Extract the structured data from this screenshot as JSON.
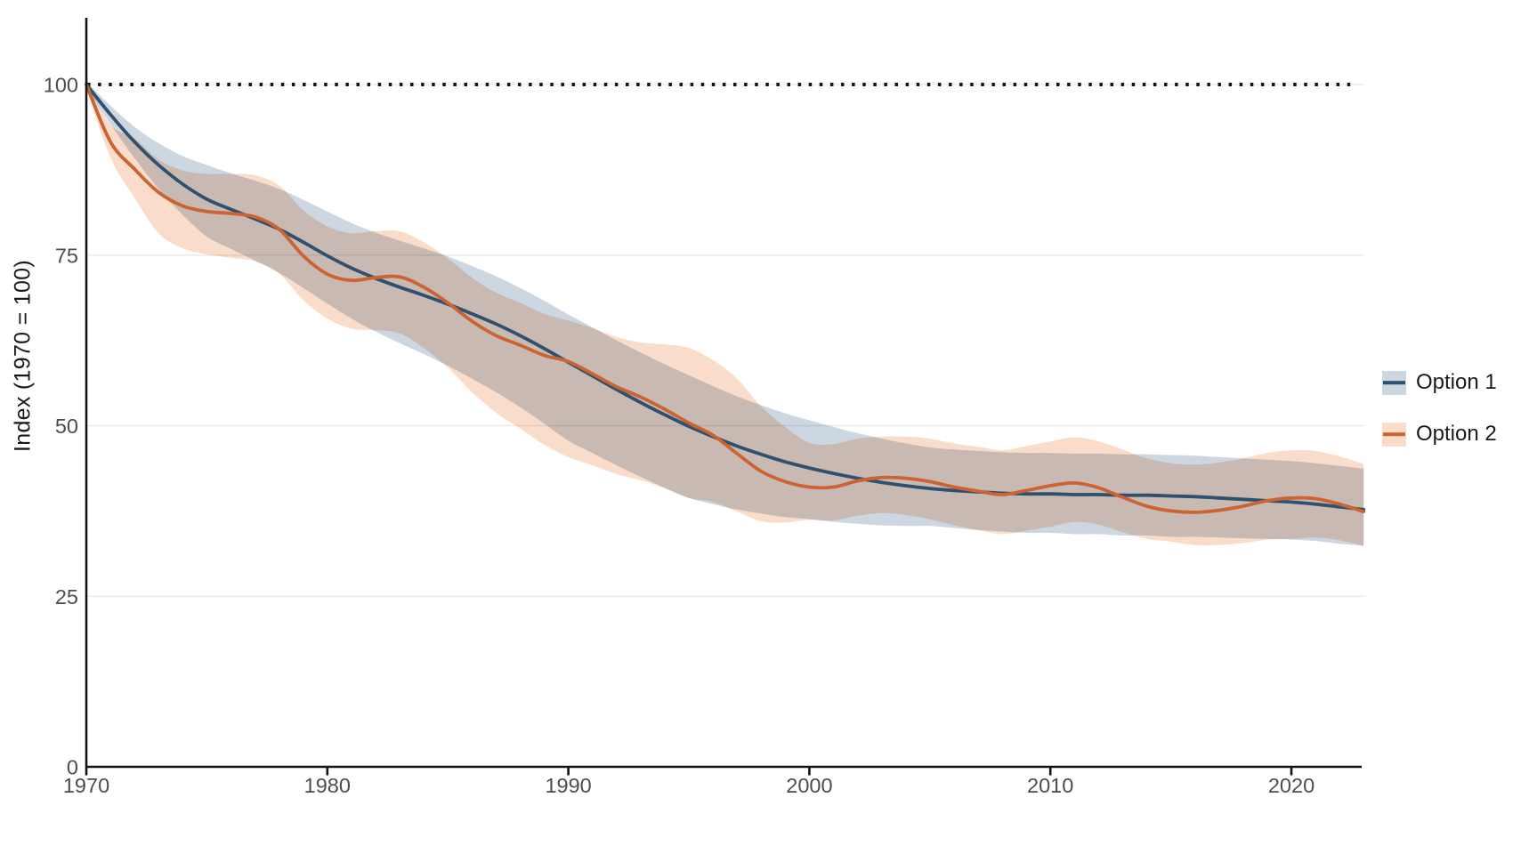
{
  "figure": {
    "background_color": "#ffffff",
    "axis_color": "#141414",
    "grid_color": "#ebebeb",
    "tick_label_color": "#4d4d4d",
    "text_color": "#1a1a1a"
  },
  "chart_data": {
    "type": "line",
    "title": "",
    "xlabel": "",
    "ylabel": "Index (1970 = 100)",
    "xlim": [
      1970,
      2023.3
    ],
    "ylim": [
      0,
      108
    ],
    "x_ticks": [
      1970,
      1980,
      1990,
      2000,
      2010,
      2020
    ],
    "y_ticks": [
      0,
      25,
      50,
      75,
      100
    ],
    "grid": "horizontal-only",
    "legend_position": "right-center",
    "reference_line": {
      "y": 100,
      "style": "dotted",
      "color": "#141414"
    },
    "x": [
      1970,
      1971,
      1972,
      1973,
      1974,
      1975,
      1976,
      1977,
      1978,
      1979,
      1980,
      1981,
      1982,
      1983,
      1984,
      1985,
      1986,
      1987,
      1988,
      1989,
      1990,
      1991,
      1992,
      1993,
      1994,
      1995,
      1996,
      1997,
      1998,
      1999,
      2000,
      2001,
      2002,
      2003,
      2004,
      2005,
      2006,
      2007,
      2008,
      2009,
      2010,
      2011,
      2012,
      2013,
      2014,
      2015,
      2016,
      2017,
      2018,
      2019,
      2020,
      2021,
      2022,
      2023
    ],
    "series": [
      {
        "name": "Option 1",
        "color": "#2f506e",
        "band_color": "#ccd7e2",
        "values": [
          100,
          95.6,
          91.6,
          88.2,
          85.4,
          83.2,
          81.7,
          80.3,
          78.8,
          76.9,
          74.9,
          73.1,
          71.6,
          70.3,
          69.1,
          67.8,
          66.4,
          64.9,
          63.2,
          61.3,
          59.3,
          57.3,
          55.3,
          53.4,
          51.6,
          49.9,
          48.4,
          47,
          45.8,
          44.7,
          43.8,
          43,
          42.3,
          41.7,
          41.2,
          40.8,
          40.5,
          40.3,
          40.1,
          40,
          40,
          39.9,
          39.9,
          39.8,
          39.8,
          39.7,
          39.6,
          39.4,
          39.2,
          39,
          38.8,
          38.5,
          38.1,
          37.7
        ],
        "upper": [
          100.4,
          96.9,
          93.8,
          91.4,
          89.5,
          88.2,
          87,
          85.9,
          84.7,
          83.1,
          81.4,
          79.7,
          78.3,
          77.1,
          76,
          74.8,
          73.4,
          71.9,
          70.2,
          68.3,
          66.3,
          64.4,
          62.5,
          60.7,
          59,
          57.4,
          55.8,
          54.3,
          53,
          51.8,
          50.8,
          49.8,
          48.9,
          48.1,
          47.4,
          46.8,
          46.5,
          46.3,
          46.1,
          46,
          46,
          45.9,
          45.9,
          45.8,
          45.8,
          45.7,
          45.6,
          45.4,
          45.2,
          45,
          44.8,
          44.5,
          44.1,
          43.7
        ],
        "lower": [
          99.6,
          94.2,
          89.2,
          84.7,
          80.9,
          77.7,
          75.9,
          74.2,
          72.4,
          70.2,
          67.9,
          65.7,
          63.8,
          62.1,
          60.5,
          58.8,
          56.9,
          54.9,
          52.7,
          50.3,
          47.8,
          46,
          44.2,
          42.5,
          40.9,
          39.4,
          38.5,
          37.7,
          37.1,
          36.6,
          36.3,
          35.9,
          35.6,
          35.4,
          35.3,
          35.3,
          35,
          34.7,
          34.5,
          34.3,
          34.3,
          34.1,
          34.1,
          33.9,
          33.9,
          33.7,
          33.7,
          33.6,
          33.5,
          33.4,
          33.3,
          33.1,
          32.7,
          32.4
        ]
      },
      {
        "name": "Option 2",
        "color": "#cb6432",
        "band_color": "#fadcca",
        "values": [
          100,
          91.6,
          87.6,
          84.2,
          82.2,
          81.4,
          81.1,
          80.6,
          78.8,
          74.9,
          72.2,
          71.3,
          71.7,
          71.8,
          70.3,
          68,
          65.3,
          63.2,
          61.8,
          60.3,
          59.4,
          57.6,
          55.7,
          54.2,
          52.4,
          50.4,
          48.6,
          45.9,
          43.3,
          41.8,
          41,
          41,
          41.9,
          42.4,
          42.3,
          41.8,
          41,
          40.4,
          39.9,
          40.5,
          41.2,
          41.6,
          40.9,
          39.5,
          38.2,
          37.5,
          37.3,
          37.6,
          38.2,
          39,
          39.4,
          39.3,
          38.5,
          37.4
        ],
        "upper": [
          100.5,
          94.1,
          92.1,
          89,
          87.4,
          86.9,
          86.9,
          86.7,
          85.2,
          81.6,
          79.2,
          78.2,
          78.5,
          78.5,
          76.9,
          74.5,
          71.7,
          69.5,
          68,
          66.4,
          65.4,
          64.3,
          63,
          62.2,
          61.9,
          61.4,
          59.6,
          56.9,
          52.8,
          49.8,
          47.5,
          47.3,
          48.1,
          48.4,
          48.4,
          48.1,
          47.4,
          46.9,
          46.4,
          47,
          47.7,
          48.3,
          47.7,
          46.5,
          45.2,
          44.5,
          44.3,
          44.6,
          45.2,
          46,
          46.4,
          46.3,
          45.5,
          44.4
        ],
        "lower": [
          99.5,
          89.3,
          83.4,
          78.2,
          76,
          75.1,
          74.6,
          74.1,
          72.3,
          68.4,
          65.7,
          64.2,
          64,
          63.5,
          61.4,
          58.5,
          54.9,
          51.9,
          49.6,
          47.2,
          45.4,
          44.2,
          42.9,
          42,
          40.8,
          39.4,
          38.8,
          37.4,
          36,
          35.8,
          36.2,
          36.1,
          36.8,
          37.2,
          36.9,
          36.3,
          35.4,
          34.7,
          34.1,
          34.6,
          35.2,
          35.9,
          35.5,
          34.4,
          33.4,
          33,
          32.5,
          32.5,
          32.8,
          33.3,
          33.4,
          33.6,
          33.2,
          32.4
        ]
      }
    ]
  }
}
